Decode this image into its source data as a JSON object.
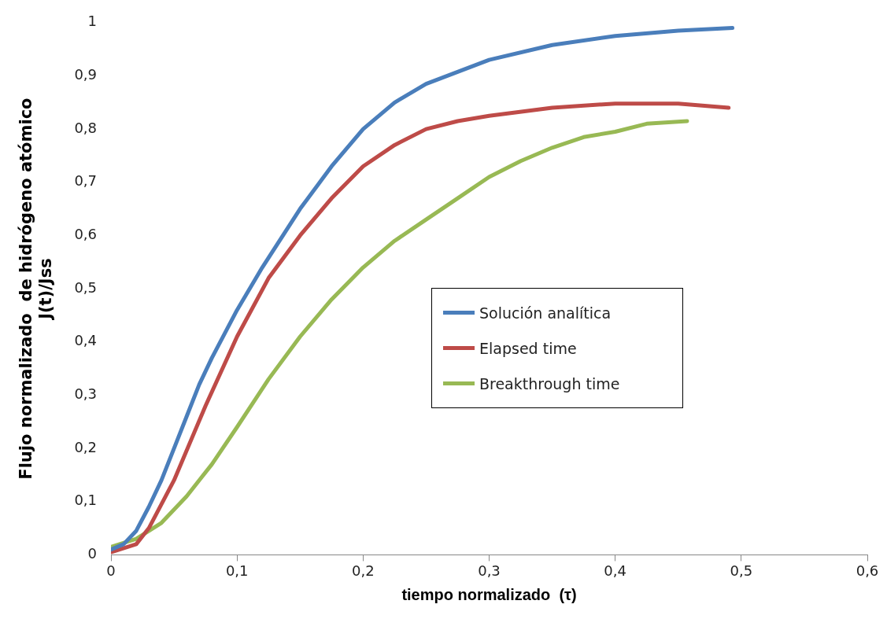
{
  "chart_data": {
    "type": "line",
    "xlabel": "tiempo normalizado  (τ)",
    "ylabel": "Flujo normalizado  de hidrógeno atómico\nJ(t)/Jss",
    "xlim": [
      0,
      0.6
    ],
    "xticks": [
      0,
      {
        "value": 0.1,
        "label": "0,1"
      },
      {
        "value": 0.2,
        "label": "0,2"
      },
      {
        "value": 0.3,
        "label": "0,3"
      },
      {
        "value": 0.4,
        "label": "0,4"
      },
      {
        "value": 0.5,
        "label": "0,5"
      },
      {
        "value": 0.6,
        "label": "0,6"
      }
    ],
    "ylim": [
      0,
      1
    ],
    "yticks": [
      0,
      {
        "value": 0.1,
        "label": "0,1"
      },
      {
        "value": 0.2,
        "label": "0,2"
      },
      {
        "value": 0.3,
        "label": "0,3"
      },
      {
        "value": 0.4,
        "label": "0,4"
      },
      {
        "value": 0.5,
        "label": "0,5"
      },
      {
        "value": 0.6,
        "label": "0,6"
      },
      {
        "value": 0.7,
        "label": "0,7"
      },
      {
        "value": 0.8,
        "label": "0,8"
      },
      {
        "value": 0.9,
        "label": "0,9"
      },
      1
    ],
    "grid": false,
    "legend": "center",
    "marker": "none",
    "line_style": "solid",
    "series": [
      {
        "name": "Solución analítica",
        "color": "#4a7ebb",
        "x": [
          0,
          0.01,
          0.02,
          0.03,
          0.04,
          0.05,
          0.06,
          0.07,
          0.08,
          0.1,
          0.12,
          0.15,
          0.175,
          0.2,
          0.225,
          0.25,
          0.3,
          0.35,
          0.4,
          0.45,
          0.493
        ],
        "values": [
          0.01,
          0.02,
          0.045,
          0.09,
          0.14,
          0.2,
          0.26,
          0.32,
          0.37,
          0.46,
          0.54,
          0.65,
          0.73,
          0.8,
          0.85,
          0.885,
          0.93,
          0.958,
          0.975,
          0.985,
          0.99
        ]
      },
      {
        "name": "Elapsed time",
        "color": "#be4b48",
        "x": [
          0,
          0.02,
          0.03,
          0.05,
          0.075,
          0.1,
          0.125,
          0.15,
          0.175,
          0.2,
          0.225,
          0.25,
          0.275,
          0.3,
          0.35,
          0.4,
          0.45,
          0.49
        ],
        "values": [
          0.005,
          0.02,
          0.05,
          0.14,
          0.28,
          0.41,
          0.52,
          0.6,
          0.67,
          0.73,
          0.77,
          0.8,
          0.815,
          0.825,
          0.84,
          0.848,
          0.848,
          0.84
        ]
      },
      {
        "name": "Breakthrough time",
        "color": "#98b954",
        "x": [
          0,
          0.02,
          0.04,
          0.06,
          0.08,
          0.1,
          0.125,
          0.15,
          0.175,
          0.2,
          0.225,
          0.25,
          0.275,
          0.3,
          0.325,
          0.35,
          0.375,
          0.4,
          0.425,
          0.457
        ],
        "values": [
          0.015,
          0.03,
          0.06,
          0.11,
          0.17,
          0.24,
          0.33,
          0.41,
          0.48,
          0.54,
          0.59,
          0.63,
          0.67,
          0.71,
          0.74,
          0.765,
          0.785,
          0.795,
          0.81,
          0.815
        ]
      }
    ]
  }
}
